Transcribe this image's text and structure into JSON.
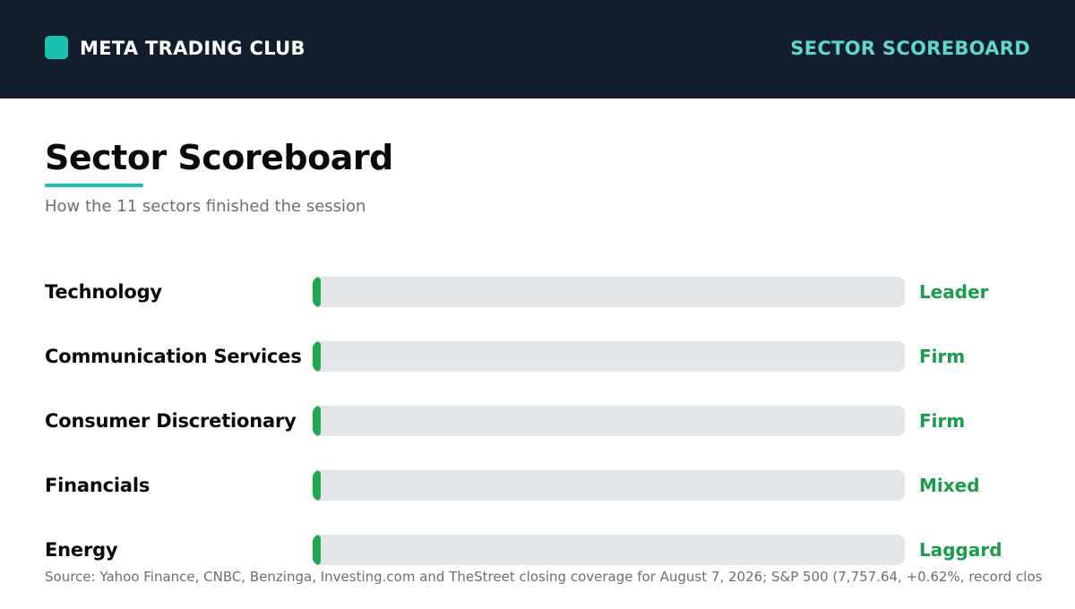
{
  "header": {
    "brand": "META TRADING CLUB",
    "right_title": "SECTOR SCOREBOARD"
  },
  "main": {
    "title": "Sector Scoreboard",
    "subtitle": "How the 11 sectors finished the session",
    "rows": [
      {
        "sector": "Technology",
        "status": "Leader",
        "fill": 0.0
      },
      {
        "sector": "Communication Services",
        "status": "Firm",
        "fill": 0.0
      },
      {
        "sector": "Consumer Discretionary",
        "status": "Firm",
        "fill": 0.0
      },
      {
        "sector": "Financials",
        "status": "Mixed",
        "fill": 0.0
      },
      {
        "sector": "Energy",
        "status": "Laggard",
        "fill": 0.0
      }
    ],
    "source": "Source: Yahoo Finance, CNBC, Benzinga, Investing.com and TheStreet closing coverage for August 7, 2026; S&P 500 (7,757.64, +0.62%, record clos"
  },
  "colors": {
    "header_bg": "#121d2d",
    "accent_teal": "#1bc1b0",
    "header_title": "#5fd8c9",
    "status_green": "#1a9c4c",
    "bar_green": "#1ea84f",
    "track_gray": "#e2e6e9"
  },
  "icons": {
    "brand": "square-logo-icon"
  }
}
